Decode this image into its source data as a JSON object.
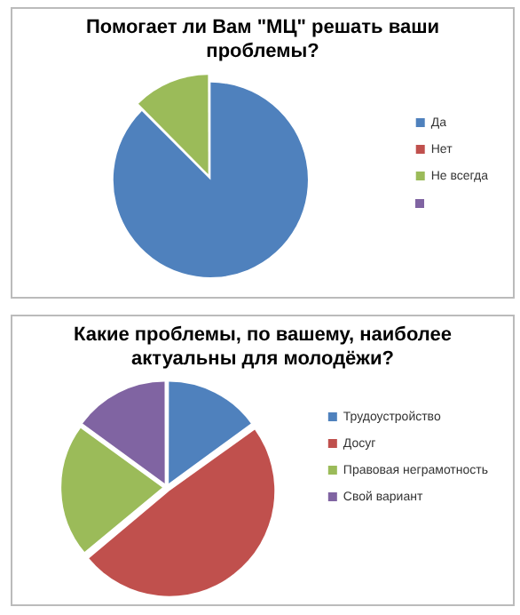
{
  "chart_data": [
    {
      "type": "pie",
      "title": "Помогает ли Вам \"МЦ\" решать ваши проблемы?",
      "categories": [
        "Да",
        "Нет",
        "Не всегда",
        null
      ],
      "values": [
        87.5,
        0,
        12.5,
        0
      ],
      "colors": [
        "#4f81bd",
        "#c0504d",
        "#9bbb59",
        "#8064a2"
      ],
      "legend": "right"
    },
    {
      "type": "pie",
      "title": "Какие проблемы, по вашему, наиболее актуальны для молодёжи?",
      "categories": [
        "Трудоустройство",
        "Досуг",
        "Правовая неграмотность",
        "Свой вариант"
      ],
      "values": [
        15,
        49,
        21,
        15
      ],
      "colors": [
        "#4f81bd",
        "#c0504d",
        "#9bbb59",
        "#8064a2"
      ],
      "legend": "right"
    }
  ]
}
